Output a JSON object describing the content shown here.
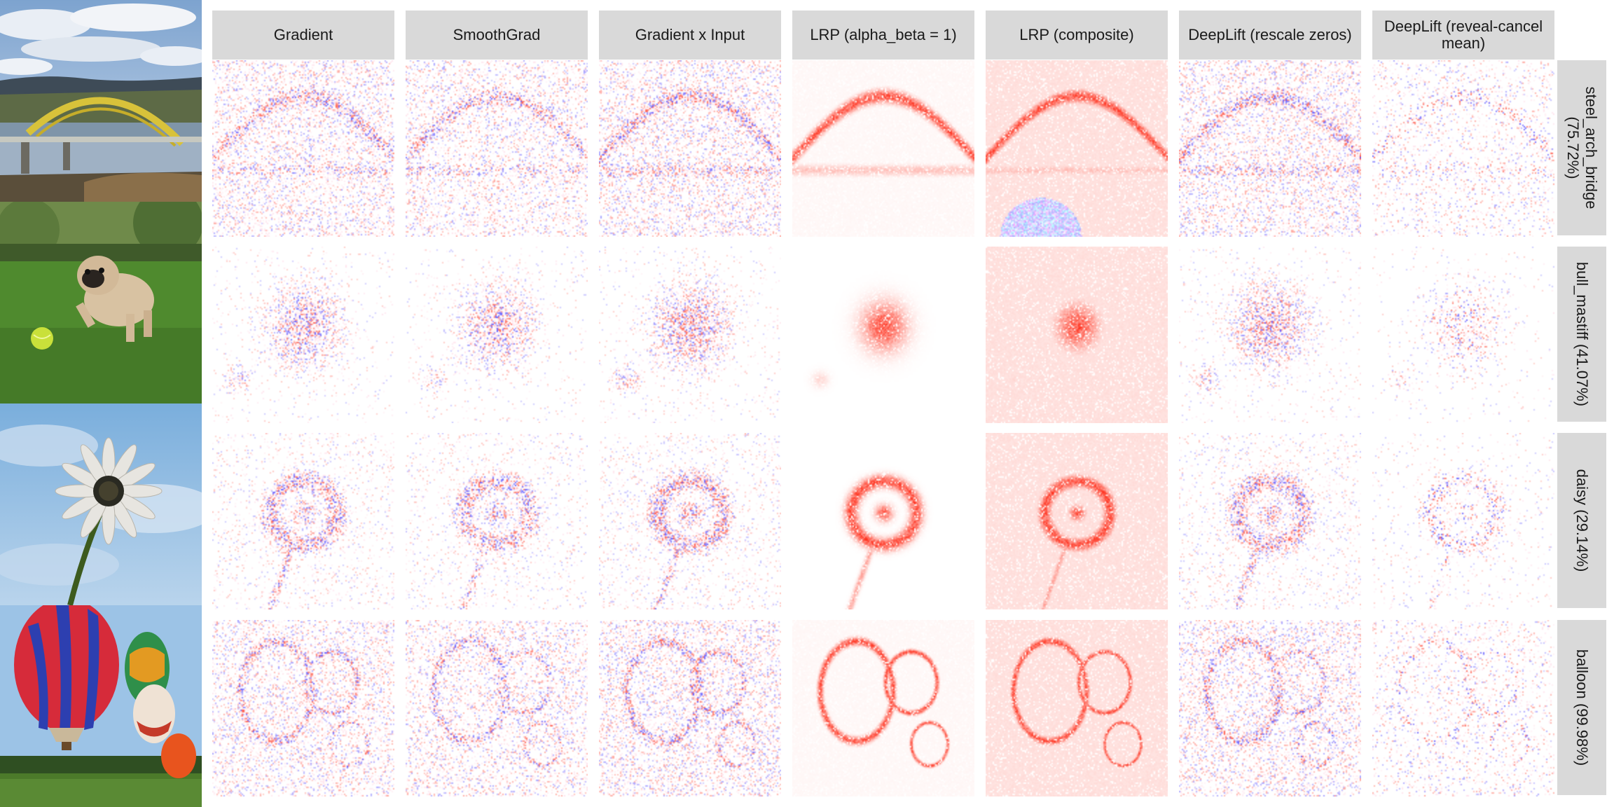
{
  "methods": [
    {
      "id": "gradient",
      "label": "Gradient",
      "style": "noise",
      "intensity": 0.9
    },
    {
      "id": "smoothgrad",
      "label": "SmoothGrad",
      "style": "noise",
      "intensity": 0.8
    },
    {
      "id": "gradient-x-input",
      "label": "Gradient x Input",
      "style": "noise",
      "intensity": 1.0
    },
    {
      "id": "lrp-alpha-beta",
      "label": "LRP (alpha_beta = 1)",
      "style": "edges",
      "intensity": 0.8
    },
    {
      "id": "lrp-composite",
      "label": "LRP (composite)",
      "style": "edges-filled",
      "intensity": 1.0
    },
    {
      "id": "deeplift-rescale",
      "label": "DeepLift (rescale zeros)",
      "style": "noise",
      "intensity": 0.95
    },
    {
      "id": "deeplift-reveal-cancel",
      "label": "DeepLift (reveal-cancel mean)",
      "style": "noise-sparse",
      "intensity": 0.75
    }
  ],
  "rows": [
    {
      "id": "bridge",
      "label": "steel_arch_bridge (75.72%)",
      "class_name": "steel_arch_bridge",
      "probability": 75.72,
      "photo_icon": "bridge-photo"
    },
    {
      "id": "mastiff",
      "label": "bull_mastiff (41.07%)",
      "class_name": "bull_mastiff",
      "probability": 41.07,
      "photo_icon": "pug-photo"
    },
    {
      "id": "daisy",
      "label": "daisy (29.14%)",
      "class_name": "daisy",
      "probability": 29.14,
      "photo_icon": "daisy-photo"
    },
    {
      "id": "balloon",
      "label": "balloon (99.98%)",
      "class_name": "balloon",
      "probability": 99.98,
      "photo_icon": "balloon-photo"
    }
  ],
  "colors": {
    "header_bg": "#d9d9d9",
    "text": "#1a1a1a",
    "positive_relevance": "#e8321e",
    "negative_relevance": "#3a32d8",
    "background": "#ffffff"
  }
}
